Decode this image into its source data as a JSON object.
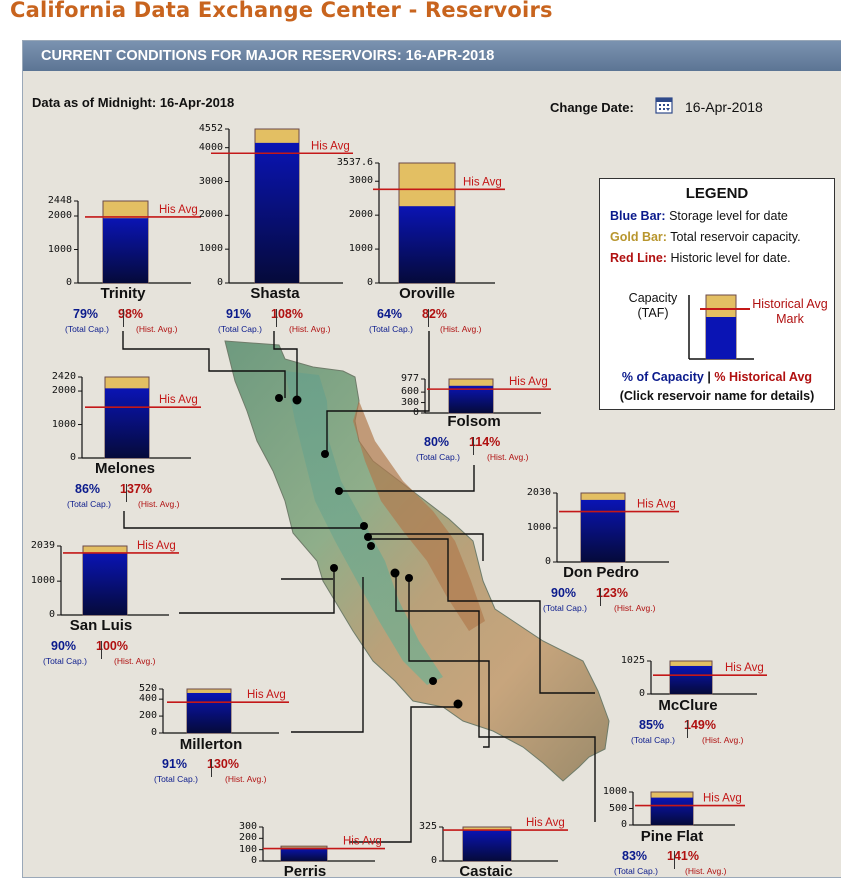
{
  "page": {
    "title": "California Data Exchange Center - Reservoirs",
    "header": "CURRENT CONDITIONS FOR MAJOR RESERVOIRS: 16-APR-2018",
    "data_as_of": "Data as of Midnight: 16-Apr-2018",
    "change_date_label": "Change Date:",
    "change_date_value": "16-Apr-2018",
    "cap_label": "(Total Cap.)",
    "hist_label": "(Hist. Avg.)",
    "his_avg_label": "His Avg"
  },
  "colors": {
    "storage_bar": "#0a14b4",
    "capacity_bar": "#e3bf63",
    "historic_line": "#c41818",
    "title": "#c8641e",
    "header": "#5c7594"
  },
  "legend": {
    "title": "LEGEND",
    "blue_key": "Blue Bar:",
    "blue_text": "Storage level for date",
    "gold_key": "Gold Bar:",
    "gold_text": "Total reservoir capacity.",
    "red_key": "Red Line:",
    "red_text": "Historic level for date.",
    "capacity": "Capacity (TAF)",
    "historical_mark": "Historical Avg Mark",
    "pct_capacity": "% of Capacity",
    "separator": "|",
    "pct_historical": "% Historical Avg",
    "click_note": "(Click reservoir name for details)"
  },
  "chart_data": {
    "type": "bar",
    "title": "Current Conditions for Major Reservoirs: 16-Apr-2018",
    "units": "TAF",
    "reservoirs": [
      {
        "name": "Trinity",
        "capacity": 2448,
        "storage": 1934,
        "hist_avg": 1973,
        "pct_capacity": "79%",
        "pct_hist": "98%",
        "ticks": [
          "2448",
          "2000",
          "1000",
          "0"
        ],
        "tick_values": [
          2448,
          2000,
          1000,
          0
        ]
      },
      {
        "name": "Shasta",
        "capacity": 4552,
        "storage": 4142,
        "hist_avg": 3835,
        "pct_capacity": "91%",
        "pct_hist": "108%",
        "ticks": [
          "4552",
          "4000",
          "3000",
          "2000",
          "1000",
          "0"
        ],
        "tick_values": [
          4552,
          4000,
          3000,
          2000,
          1000,
          0
        ]
      },
      {
        "name": "Oroville",
        "capacity": 3537.6,
        "storage": 2264,
        "hist_avg": 2761,
        "pct_capacity": "64%",
        "pct_hist": "82%",
        "ticks": [
          "3537.6",
          "3000",
          "2000",
          "1000",
          "0"
        ],
        "tick_values": [
          3537.6,
          3000,
          2000,
          1000,
          0
        ]
      },
      {
        "name": "Folsom",
        "capacity": 977,
        "storage": 782,
        "hist_avg": 686,
        "pct_capacity": "80%",
        "pct_hist": "114%",
        "ticks": [
          "977",
          "600",
          "300",
          "0"
        ],
        "tick_values": [
          977,
          600,
          300,
          0
        ]
      },
      {
        "name": "Melones",
        "capacity": 2420,
        "storage": 2081,
        "hist_avg": 1519,
        "pct_capacity": "86%",
        "pct_hist": "137%",
        "ticks": [
          "2420",
          "2000",
          "1000",
          "0"
        ],
        "tick_values": [
          2420,
          2000,
          1000,
          0
        ]
      },
      {
        "name": "Don Pedro",
        "capacity": 2030,
        "storage": 1827,
        "hist_avg": 1485,
        "pct_capacity": "90%",
        "pct_hist": "123%",
        "ticks": [
          "2030",
          "1000",
          "0"
        ],
        "tick_values": [
          2030,
          1000,
          0
        ]
      },
      {
        "name": "San Luis",
        "capacity": 2039,
        "storage": 1835,
        "hist_avg": 1835,
        "pct_capacity": "90%",
        "pct_hist": "100%",
        "ticks": [
          "2039",
          "1000",
          "0"
        ],
        "tick_values": [
          2039,
          1000,
          0
        ]
      },
      {
        "name": "McClure",
        "capacity": 1025,
        "storage": 871,
        "hist_avg": 585,
        "pct_capacity": "85%",
        "pct_hist": "149%",
        "ticks": [
          "1025",
          "0"
        ],
        "tick_values": [
          1025,
          0
        ]
      },
      {
        "name": "Millerton",
        "capacity": 520,
        "storage": 473,
        "hist_avg": 364,
        "pct_capacity": "91%",
        "pct_hist": "130%",
        "ticks": [
          "520",
          "400",
          "200",
          "0"
        ],
        "tick_values": [
          520,
          400,
          200,
          0
        ]
      },
      {
        "name": "Pine Flat",
        "capacity": 1000,
        "storage": 830,
        "hist_avg": 589,
        "pct_capacity": "83%",
        "pct_hist": "141%",
        "ticks": [
          "1000",
          "500",
          "0"
        ],
        "tick_values": [
          1000,
          500,
          0
        ]
      },
      {
        "name": "Perris",
        "capacity": 131,
        "storage": 118,
        "hist_avg": 110,
        "pct_capacity": "",
        "pct_hist": "",
        "ticks": [
          "300",
          "200",
          "100",
          "0"
        ],
        "tick_values": [
          300,
          200,
          100,
          0
        ]
      },
      {
        "name": "Castaic",
        "capacity": 325,
        "storage": 296,
        "hist_avg": 296,
        "pct_capacity": "",
        "pct_hist": "",
        "ticks": [
          "325",
          "0"
        ],
        "tick_values": [
          325,
          0
        ]
      }
    ]
  }
}
